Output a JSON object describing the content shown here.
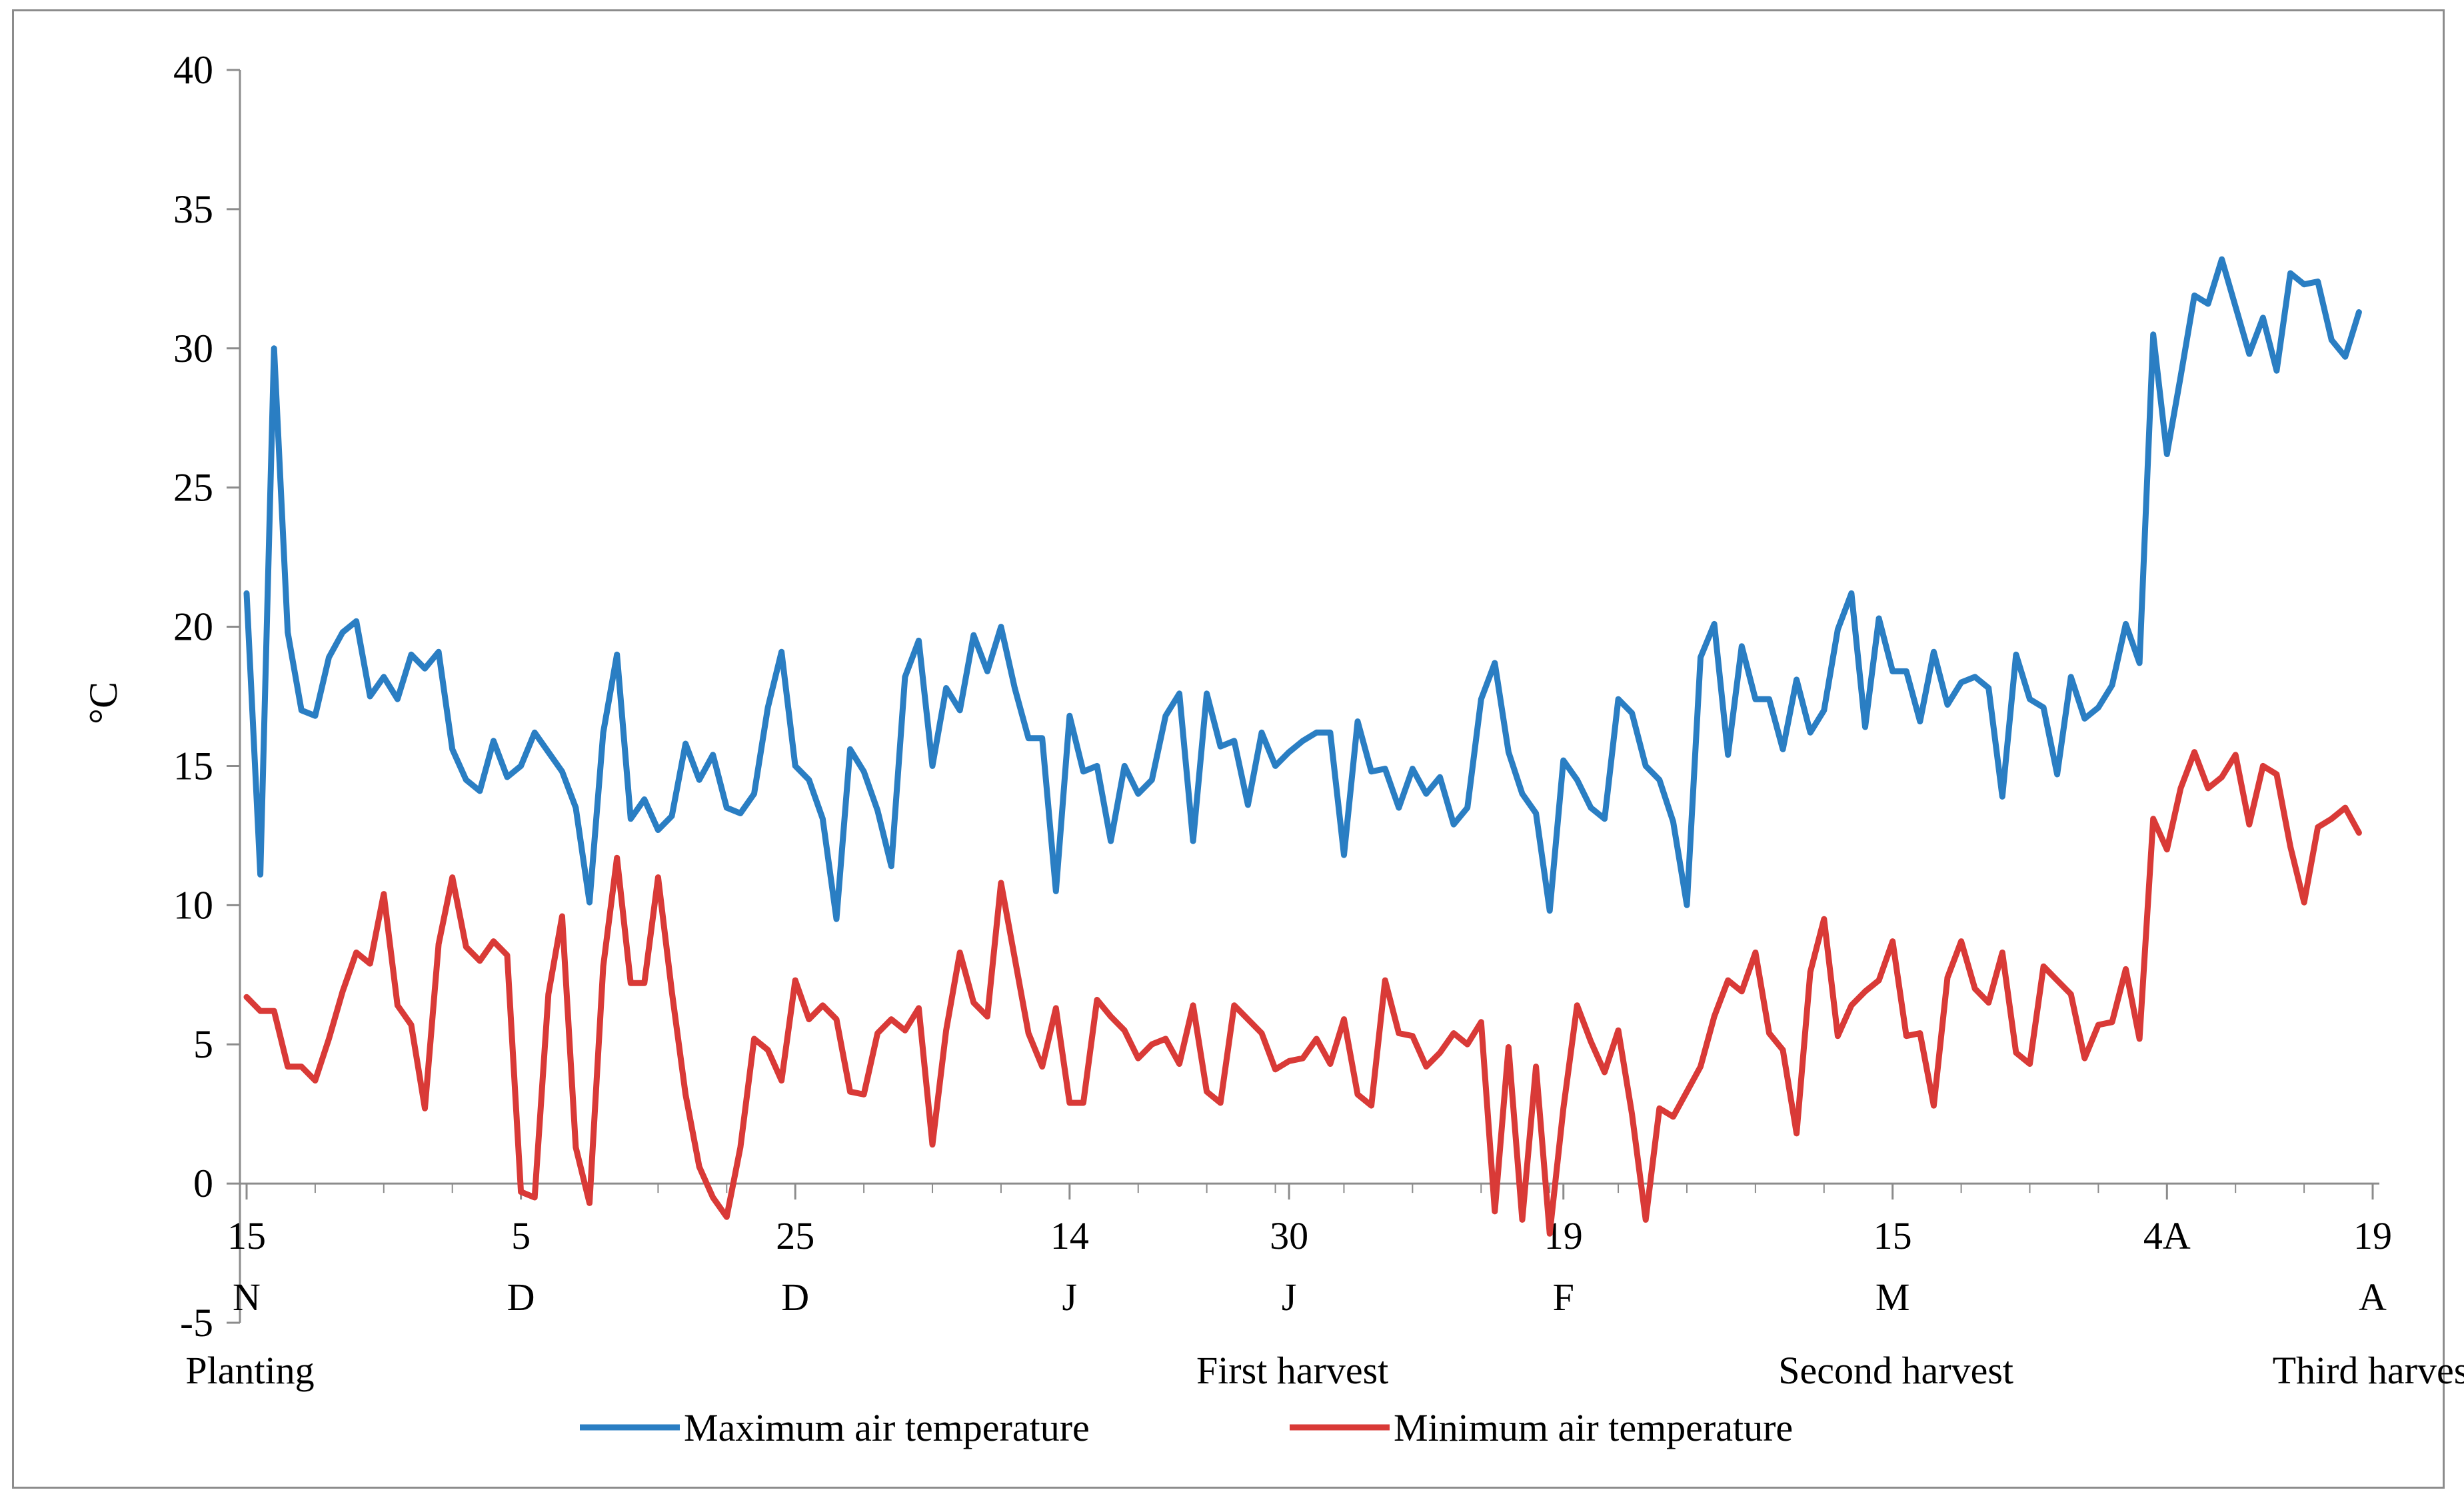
{
  "chart_data": {
    "type": "line",
    "title": "",
    "xlabel": "",
    "ylabel": "°C",
    "ylim": [
      -5,
      40
    ],
    "yticks": [
      -5,
      0,
      5,
      10,
      15,
      20,
      25,
      30,
      35,
      40
    ],
    "x_ticks": [
      {
        "day": 0,
        "day_label": "15",
        "month_label": "N",
        "event": "Planting"
      },
      {
        "day": 20,
        "day_label": "5",
        "month_label": "D",
        "event": ""
      },
      {
        "day": 40,
        "day_label": "25",
        "month_label": "D",
        "event": ""
      },
      {
        "day": 60,
        "day_label": "14",
        "month_label": "J",
        "event": ""
      },
      {
        "day": 76,
        "day_label": "30",
        "month_label": "J",
        "event": "First harvest"
      },
      {
        "day": 96,
        "day_label": "19",
        "month_label": "F",
        "event": ""
      },
      {
        "day": 120,
        "day_label": "15",
        "month_label": "M",
        "event": "Second harvest"
      },
      {
        "day": 140,
        "day_label": "4A",
        "month_label": "",
        "event": ""
      },
      {
        "day": 155,
        "day_label": "19",
        "month_label": "A",
        "event": "Third harvest"
      }
    ],
    "x_range": [
      0,
      155
    ],
    "series": [
      {
        "name": "Maximum air temperature",
        "color": "#2a7ec3",
        "values": [
          21.2,
          11.1,
          30,
          19.8,
          17,
          16.8,
          18.9,
          19.8,
          20.2,
          17.5,
          18.2,
          17.4,
          19,
          18.5,
          19.1,
          15.6,
          14.5,
          14.1,
          15.9,
          14.6,
          15,
          16.2,
          15.5,
          14.8,
          13.5,
          10.1,
          16.2,
          19,
          13.1,
          13.8,
          12.7,
          13.2,
          15.8,
          14.5,
          15.4,
          13.5,
          13.3,
          14,
          17.1,
          19.1,
          15,
          14.5,
          13.1,
          9.5,
          15.6,
          14.8,
          13.4,
          11.4,
          18.2,
          19.5,
          15,
          17.8,
          17,
          19.7,
          18.4,
          20,
          17.8,
          16,
          16,
          10.5,
          16.8,
          14.8,
          15,
          12.3,
          15,
          14,
          14.5,
          16.8,
          17.6,
          12.3,
          17.6,
          15.7,
          15.9,
          13.6,
          16.2,
          15,
          15.5,
          15.9,
          16.2,
          16.2,
          11.8,
          16.6,
          14.8,
          14.9,
          13.5,
          14.9,
          14,
          14.6,
          12.9,
          13.5,
          17.4,
          18.7,
          15.5,
          14,
          13.3,
          9.8,
          15.2,
          14.5,
          13.5,
          13.1,
          17.4,
          16.9,
          15,
          14.5,
          13,
          10,
          18.9,
          20.1,
          15.4,
          19.3,
          17.4,
          17.4,
          15.6,
          18.1,
          16.2,
          17,
          19.9,
          21.2,
          16.4,
          20.3,
          18.4,
          18.4,
          16.6,
          19.1,
          17.2,
          18,
          18.2,
          17.8,
          13.9,
          19,
          17.4,
          17.1,
          14.7,
          18.2,
          16.7,
          17.1,
          17.9,
          20.1,
          18.7,
          30.5,
          26.2,
          29,
          31.9,
          31.6,
          33.2,
          31.5,
          29.8,
          31.1,
          29.2,
          32.7,
          32.3,
          32.4,
          30.3,
          29.7,
          31.3
        ]
      },
      {
        "name": "Minimum air temperature",
        "color": "#d93a37",
        "values": [
          6.7,
          6.2,
          6.2,
          4.2,
          4.2,
          3.7,
          5.2,
          6.9,
          8.3,
          7.9,
          10.4,
          6.4,
          5.7,
          2.7,
          8.6,
          11,
          8.5,
          8,
          8.7,
          8.2,
          -0.3,
          -0.5,
          6.8,
          9.6,
          1.3,
          -0.7,
          7.8,
          11.7,
          7.2,
          7.2,
          11,
          6.9,
          3.2,
          0.6,
          -0.5,
          -1.2,
          1.3,
          5.2,
          4.8,
          3.7,
          7.3,
          5.9,
          6.4,
          5.9,
          3.3,
          3.2,
          5.4,
          5.9,
          5.5,
          6.3,
          1.4,
          5.5,
          8.3,
          6.5,
          6,
          10.8,
          8.1,
          5.4,
          4.2,
          6.3,
          2.9,
          2.9,
          6.6,
          6,
          5.5,
          4.5,
          5,
          5.2,
          4.3,
          6.4,
          3.3,
          2.9,
          6.4,
          5.9,
          5.4,
          4.1,
          4.4,
          4.5,
          5.2,
          4.3,
          5.9,
          3.2,
          2.8,
          7.3,
          5.4,
          5.3,
          4.2,
          4.7,
          5.4,
          5,
          5.8,
          -1,
          4.9,
          -1.3,
          4.2,
          -1.8,
          2.7,
          6.4,
          5.1,
          4,
          5.5,
          2.5,
          -1.3,
          2.7,
          2.4,
          3.3,
          4.2,
          6,
          7.3,
          6.9,
          8.3,
          5.4,
          4.8,
          1.8,
          7.6,
          9.5,
          5.3,
          6.4,
          6.9,
          7.3,
          8.7,
          5.3,
          5.4,
          2.8,
          7.4,
          8.7,
          7,
          6.5,
          8.3,
          4.7,
          4.3,
          7.8,
          7.3,
          6.8,
          4.5,
          5.7,
          5.8,
          7.7,
          5.2,
          13.1,
          12,
          14.2,
          15.5,
          14.2,
          14.6,
          15.4,
          12.9,
          15,
          14.7,
          12.1,
          10.1,
          12.8,
          13.1,
          13.5,
          12.6
        ]
      }
    ],
    "legend": "bottom"
  }
}
